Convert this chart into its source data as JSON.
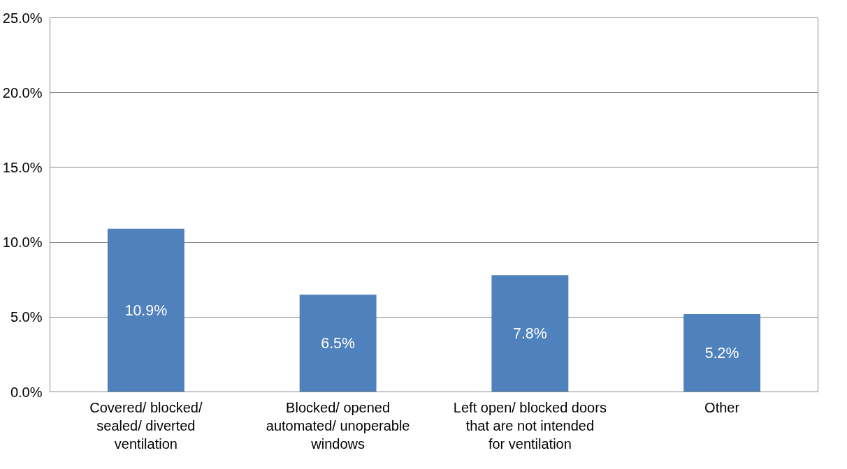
{
  "chart_data": {
    "type": "bar",
    "categories": [
      "Covered/ blocked/ sealed/ diverted ventilation",
      "Blocked/ opened automated/ unoperable windows",
      "Left open/ blocked doors that are not intended for ventilation",
      "Other"
    ],
    "values": [
      10.9,
      6.5,
      7.8,
      5.2
    ],
    "value_labels": [
      "10.9%",
      "6.5%",
      "7.8%",
      "5.2%"
    ],
    "color": "#4f81bd",
    "ylim": [
      0,
      25
    ],
    "yticks": [
      {
        "value": 0,
        "label": "0.0%"
      },
      {
        "value": 5,
        "label": "5.0%"
      },
      {
        "value": 10,
        "label": "10.0%"
      },
      {
        "value": 15,
        "label": "15.0%"
      },
      {
        "value": 20,
        "label": "20.0%"
      },
      {
        "value": 25,
        "label": "25.0%"
      }
    ],
    "grid": "y"
  }
}
